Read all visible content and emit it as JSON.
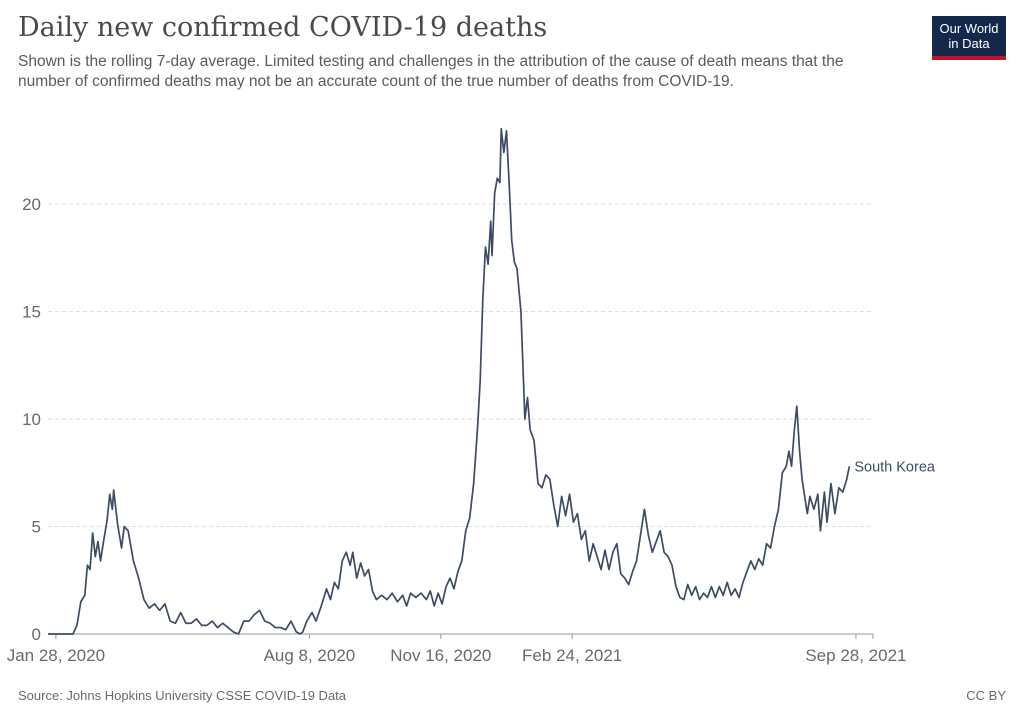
{
  "header": {
    "title": "Daily new confirmed COVID-19 deaths",
    "subtitle": "Shown is the rolling 7-day average. Limited testing and challenges in the attribution of the cause of death means that the number of confirmed deaths may not be an accurate count of the true number of deaths from COVID-19.",
    "logo_line1": "Our World",
    "logo_line2": "in Data"
  },
  "footer": {
    "source": "Source: Johns Hopkins University CSSE COVID-19 Data",
    "license": "CC BY"
  },
  "colors": {
    "series": "#3d4b63",
    "grid": "#dddddd",
    "axis_text": "#6a6a6a",
    "logo_bg": "#13284b",
    "logo_accent": "#c8102e"
  },
  "chart_data": {
    "type": "line",
    "x_type": "date",
    "xlim": [
      "2020-01-22",
      "2021-10-11"
    ],
    "ylim": [
      0,
      24
    ],
    "yticks": [
      0,
      5,
      10,
      15,
      20
    ],
    "xtick_labels": [
      {
        "date": "2020-01-28",
        "label": "Jan 28, 2020"
      },
      {
        "date": "2020-08-08",
        "label": "Aug 8, 2020"
      },
      {
        "date": "2020-11-16",
        "label": "Nov 16, 2020"
      },
      {
        "date": "2021-02-24",
        "label": "Feb 24, 2021"
      },
      {
        "date": "2021-09-28",
        "label": "Sep 28, 2021"
      }
    ],
    "grid": "horizontal dashed",
    "legend": "end-of-line label",
    "series": [
      {
        "name": "South Korea",
        "points": [
          [
            "2020-01-22",
            0
          ],
          [
            "2020-02-05",
            0
          ],
          [
            "2020-02-10",
            0
          ],
          [
            "2020-02-13",
            0.4
          ],
          [
            "2020-02-16",
            1.5
          ],
          [
            "2020-02-19",
            1.8
          ],
          [
            "2020-02-21",
            3.2
          ],
          [
            "2020-02-23",
            3.0
          ],
          [
            "2020-02-25",
            4.7
          ],
          [
            "2020-02-27",
            3.6
          ],
          [
            "2020-02-29",
            4.3
          ],
          [
            "2020-03-02",
            3.4
          ],
          [
            "2020-03-04",
            4.2
          ],
          [
            "2020-03-07",
            5.3
          ],
          [
            "2020-03-09",
            6.5
          ],
          [
            "2020-03-11",
            5.8
          ],
          [
            "2020-03-12",
            6.7
          ],
          [
            "2020-03-15",
            5.1
          ],
          [
            "2020-03-18",
            4.0
          ],
          [
            "2020-03-20",
            5.0
          ],
          [
            "2020-03-23",
            4.8
          ],
          [
            "2020-03-27",
            3.4
          ],
          [
            "2020-03-31",
            2.6
          ],
          [
            "2020-04-04",
            1.6
          ],
          [
            "2020-04-08",
            1.2
          ],
          [
            "2020-04-12",
            1.4
          ],
          [
            "2020-04-16",
            1.1
          ],
          [
            "2020-04-20",
            1.4
          ],
          [
            "2020-04-24",
            0.6
          ],
          [
            "2020-04-28",
            0.5
          ],
          [
            "2020-05-02",
            1.0
          ],
          [
            "2020-05-06",
            0.5
          ],
          [
            "2020-05-10",
            0.5
          ],
          [
            "2020-05-14",
            0.7
          ],
          [
            "2020-05-18",
            0.4
          ],
          [
            "2020-05-22",
            0.4
          ],
          [
            "2020-05-26",
            0.6
          ],
          [
            "2020-05-30",
            0.3
          ],
          [
            "2020-06-03",
            0.5
          ],
          [
            "2020-06-07",
            0.3
          ],
          [
            "2020-06-11",
            0.1
          ],
          [
            "2020-06-15",
            0
          ],
          [
            "2020-06-19",
            0.6
          ],
          [
            "2020-06-23",
            0.6
          ],
          [
            "2020-06-27",
            0.9
          ],
          [
            "2020-07-01",
            1.1
          ],
          [
            "2020-07-05",
            0.6
          ],
          [
            "2020-07-09",
            0.5
          ],
          [
            "2020-07-13",
            0.3
          ],
          [
            "2020-07-17",
            0.3
          ],
          [
            "2020-07-21",
            0.2
          ],
          [
            "2020-07-25",
            0.6
          ],
          [
            "2020-07-29",
            0.1
          ],
          [
            "2020-08-01",
            0
          ],
          [
            "2020-08-03",
            0.1
          ],
          [
            "2020-08-06",
            0.6
          ],
          [
            "2020-08-10",
            1.0
          ],
          [
            "2020-08-13",
            0.6
          ],
          [
            "2020-08-17",
            1.3
          ],
          [
            "2020-08-21",
            2.1
          ],
          [
            "2020-08-24",
            1.6
          ],
          [
            "2020-08-27",
            2.4
          ],
          [
            "2020-08-30",
            2.1
          ],
          [
            "2020-09-02",
            3.4
          ],
          [
            "2020-09-05",
            3.8
          ],
          [
            "2020-09-08",
            3.2
          ],
          [
            "2020-09-10",
            3.8
          ],
          [
            "2020-09-13",
            2.6
          ],
          [
            "2020-09-16",
            3.3
          ],
          [
            "2020-09-19",
            2.7
          ],
          [
            "2020-09-22",
            3.0
          ],
          [
            "2020-09-25",
            2.0
          ],
          [
            "2020-09-28",
            1.6
          ],
          [
            "2020-10-02",
            1.8
          ],
          [
            "2020-10-06",
            1.6
          ],
          [
            "2020-10-10",
            1.9
          ],
          [
            "2020-10-14",
            1.5
          ],
          [
            "2020-10-18",
            1.8
          ],
          [
            "2020-10-21",
            1.3
          ],
          [
            "2020-10-24",
            1.9
          ],
          [
            "2020-10-28",
            1.7
          ],
          [
            "2020-11-01",
            1.9
          ],
          [
            "2020-11-05",
            1.6
          ],
          [
            "2020-11-08",
            2.0
          ],
          [
            "2020-11-11",
            1.3
          ],
          [
            "2020-11-14",
            1.9
          ],
          [
            "2020-11-17",
            1.4
          ],
          [
            "2020-11-20",
            2.2
          ],
          [
            "2020-11-23",
            2.6
          ],
          [
            "2020-11-26",
            2.1
          ],
          [
            "2020-11-29",
            2.9
          ],
          [
            "2020-12-02",
            3.4
          ],
          [
            "2020-12-05",
            4.8
          ],
          [
            "2020-12-08",
            5.4
          ],
          [
            "2020-12-11",
            7.0
          ],
          [
            "2020-12-14",
            9.6
          ],
          [
            "2020-12-16",
            11.8
          ],
          [
            "2020-12-18",
            15.6
          ],
          [
            "2020-12-20",
            18.0
          ],
          [
            "2020-12-22",
            17.2
          ],
          [
            "2020-12-24",
            19.2
          ],
          [
            "2020-12-25",
            17.6
          ],
          [
            "2020-12-27",
            20.5
          ],
          [
            "2020-12-29",
            21.2
          ],
          [
            "2020-12-31",
            21.0
          ],
          [
            "2021-01-01",
            23.5
          ],
          [
            "2021-01-03",
            22.4
          ],
          [
            "2021-01-05",
            23.4
          ],
          [
            "2021-01-07",
            21.0
          ],
          [
            "2021-01-09",
            18.3
          ],
          [
            "2021-01-11",
            17.3
          ],
          [
            "2021-01-13",
            17.0
          ],
          [
            "2021-01-16",
            15.0
          ],
          [
            "2021-01-19",
            10.0
          ],
          [
            "2021-01-21",
            11.0
          ],
          [
            "2021-01-23",
            9.5
          ],
          [
            "2021-01-26",
            9.0
          ],
          [
            "2021-01-29",
            7.0
          ],
          [
            "2021-02-01",
            6.8
          ],
          [
            "2021-02-04",
            7.4
          ],
          [
            "2021-02-07",
            7.2
          ],
          [
            "2021-02-10",
            6.0
          ],
          [
            "2021-02-13",
            5.0
          ],
          [
            "2021-02-16",
            6.4
          ],
          [
            "2021-02-19",
            5.5
          ],
          [
            "2021-02-22",
            6.5
          ],
          [
            "2021-02-25",
            5.2
          ],
          [
            "2021-02-28",
            5.6
          ],
          [
            "2021-03-03",
            4.4
          ],
          [
            "2021-03-06",
            4.8
          ],
          [
            "2021-03-09",
            3.4
          ],
          [
            "2021-03-12",
            4.2
          ],
          [
            "2021-03-15",
            3.6
          ],
          [
            "2021-03-18",
            3.0
          ],
          [
            "2021-03-21",
            3.9
          ],
          [
            "2021-03-24",
            3.0
          ],
          [
            "2021-03-27",
            3.8
          ],
          [
            "2021-03-30",
            4.2
          ],
          [
            "2021-04-02",
            2.8
          ],
          [
            "2021-04-05",
            2.6
          ],
          [
            "2021-04-08",
            2.3
          ],
          [
            "2021-04-11",
            2.9
          ],
          [
            "2021-04-14",
            3.4
          ],
          [
            "2021-04-17",
            4.6
          ],
          [
            "2021-04-20",
            5.8
          ],
          [
            "2021-04-23",
            4.6
          ],
          [
            "2021-04-26",
            3.8
          ],
          [
            "2021-04-29",
            4.3
          ],
          [
            "2021-05-02",
            4.8
          ],
          [
            "2021-05-05",
            3.8
          ],
          [
            "2021-05-08",
            3.6
          ],
          [
            "2021-05-11",
            3.2
          ],
          [
            "2021-05-14",
            2.2
          ],
          [
            "2021-05-17",
            1.7
          ],
          [
            "2021-05-20",
            1.6
          ],
          [
            "2021-05-23",
            2.3
          ],
          [
            "2021-05-26",
            1.8
          ],
          [
            "2021-05-29",
            2.2
          ],
          [
            "2021-06-01",
            1.6
          ],
          [
            "2021-06-04",
            1.9
          ],
          [
            "2021-06-07",
            1.7
          ],
          [
            "2021-06-10",
            2.2
          ],
          [
            "2021-06-13",
            1.7
          ],
          [
            "2021-06-16",
            2.2
          ],
          [
            "2021-06-19",
            1.8
          ],
          [
            "2021-06-22",
            2.4
          ],
          [
            "2021-06-25",
            1.8
          ],
          [
            "2021-06-28",
            2.1
          ],
          [
            "2021-07-01",
            1.7
          ],
          [
            "2021-07-04",
            2.4
          ],
          [
            "2021-07-07",
            2.9
          ],
          [
            "2021-07-10",
            3.4
          ],
          [
            "2021-07-13",
            3.0
          ],
          [
            "2021-07-16",
            3.5
          ],
          [
            "2021-07-19",
            3.2
          ],
          [
            "2021-07-22",
            4.2
          ],
          [
            "2021-07-25",
            4.0
          ],
          [
            "2021-07-28",
            5.0
          ],
          [
            "2021-07-31",
            5.8
          ],
          [
            "2021-08-03",
            7.5
          ],
          [
            "2021-08-06",
            7.8
          ],
          [
            "2021-08-08",
            8.5
          ],
          [
            "2021-08-10",
            7.8
          ],
          [
            "2021-08-12",
            9.4
          ],
          [
            "2021-08-14",
            10.6
          ],
          [
            "2021-08-16",
            8.6
          ],
          [
            "2021-08-18",
            7.2
          ],
          [
            "2021-08-20",
            6.4
          ],
          [
            "2021-08-22",
            5.6
          ],
          [
            "2021-08-24",
            6.4
          ],
          [
            "2021-08-27",
            5.8
          ],
          [
            "2021-08-30",
            6.5
          ],
          [
            "2021-09-01",
            4.8
          ],
          [
            "2021-09-04",
            6.6
          ],
          [
            "2021-09-06",
            5.2
          ],
          [
            "2021-09-09",
            7.0
          ],
          [
            "2021-09-12",
            5.6
          ],
          [
            "2021-09-15",
            6.8
          ],
          [
            "2021-09-18",
            6.6
          ],
          [
            "2021-09-21",
            7.2
          ],
          [
            "2021-09-23",
            7.8
          ]
        ]
      }
    ]
  }
}
